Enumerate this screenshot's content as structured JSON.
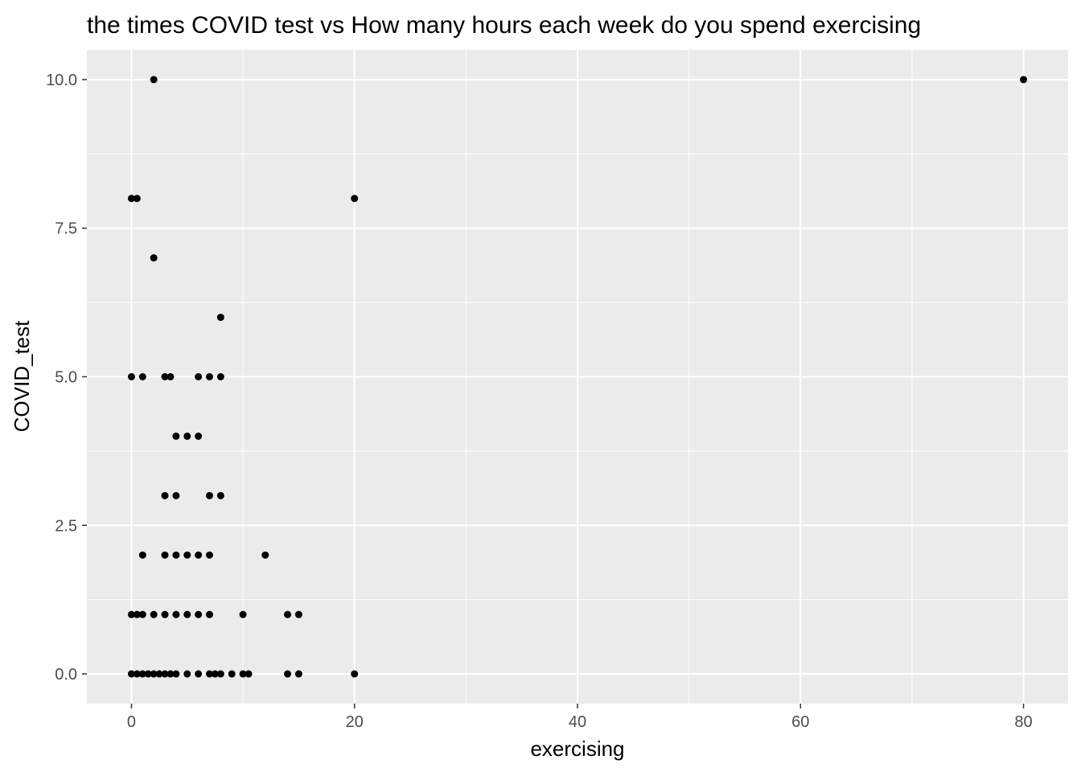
{
  "chart_data": {
    "type": "scatter",
    "title": "the times COVID test vs How many hours each week do you spend exercising",
    "xlabel": "exercising",
    "ylabel": "COVID_test",
    "xlim": [
      -4,
      84
    ],
    "ylim": [
      -0.5,
      10.5
    ],
    "x_ticks": [
      0,
      20,
      40,
      60,
      80
    ],
    "x_tick_labels": [
      "0",
      "20",
      "40",
      "60",
      "80"
    ],
    "y_ticks": [
      0,
      2.5,
      5,
      7.5,
      10
    ],
    "y_tick_labels": [
      "0.0",
      "2.5",
      "5.0",
      "7.5",
      "10.0"
    ],
    "grid": true,
    "colors": {
      "panel": "#ebebeb",
      "grid": "#ffffff",
      "point": "#000000",
      "tick": "#4d4d4d"
    },
    "points": [
      {
        "x": 2,
        "y": 10
      },
      {
        "x": 80,
        "y": 10
      },
      {
        "x": 0,
        "y": 8
      },
      {
        "x": 0.5,
        "y": 8
      },
      {
        "x": 20,
        "y": 8
      },
      {
        "x": 2,
        "y": 7
      },
      {
        "x": 8,
        "y": 6
      },
      {
        "x": 0,
        "y": 5
      },
      {
        "x": 1,
        "y": 5
      },
      {
        "x": 3,
        "y": 5
      },
      {
        "x": 3.5,
        "y": 5
      },
      {
        "x": 6,
        "y": 5
      },
      {
        "x": 7,
        "y": 5
      },
      {
        "x": 8,
        "y": 5
      },
      {
        "x": 4,
        "y": 4
      },
      {
        "x": 5,
        "y": 4
      },
      {
        "x": 6,
        "y": 4
      },
      {
        "x": 3,
        "y": 3
      },
      {
        "x": 4,
        "y": 3
      },
      {
        "x": 7,
        "y": 3
      },
      {
        "x": 8,
        "y": 3
      },
      {
        "x": 1,
        "y": 2
      },
      {
        "x": 3,
        "y": 2
      },
      {
        "x": 4,
        "y": 2
      },
      {
        "x": 5,
        "y": 2
      },
      {
        "x": 6,
        "y": 2
      },
      {
        "x": 7,
        "y": 2
      },
      {
        "x": 12,
        "y": 2
      },
      {
        "x": 0,
        "y": 1
      },
      {
        "x": 0.5,
        "y": 1
      },
      {
        "x": 1,
        "y": 1
      },
      {
        "x": 2,
        "y": 1
      },
      {
        "x": 3,
        "y": 1
      },
      {
        "x": 4,
        "y": 1
      },
      {
        "x": 5,
        "y": 1
      },
      {
        "x": 6,
        "y": 1
      },
      {
        "x": 7,
        "y": 1
      },
      {
        "x": 10,
        "y": 1
      },
      {
        "x": 14,
        "y": 1
      },
      {
        "x": 15,
        "y": 1
      },
      {
        "x": 0,
        "y": 0
      },
      {
        "x": 0.5,
        "y": 0
      },
      {
        "x": 1,
        "y": 0
      },
      {
        "x": 1.5,
        "y": 0
      },
      {
        "x": 2,
        "y": 0
      },
      {
        "x": 2.5,
        "y": 0
      },
      {
        "x": 3,
        "y": 0
      },
      {
        "x": 3.5,
        "y": 0
      },
      {
        "x": 4,
        "y": 0
      },
      {
        "x": 5,
        "y": 0
      },
      {
        "x": 6,
        "y": 0
      },
      {
        "x": 7,
        "y": 0
      },
      {
        "x": 7.5,
        "y": 0
      },
      {
        "x": 8,
        "y": 0
      },
      {
        "x": 9,
        "y": 0
      },
      {
        "x": 10,
        "y": 0
      },
      {
        "x": 10.5,
        "y": 0
      },
      {
        "x": 14,
        "y": 0
      },
      {
        "x": 15,
        "y": 0
      },
      {
        "x": 20,
        "y": 0
      }
    ]
  }
}
